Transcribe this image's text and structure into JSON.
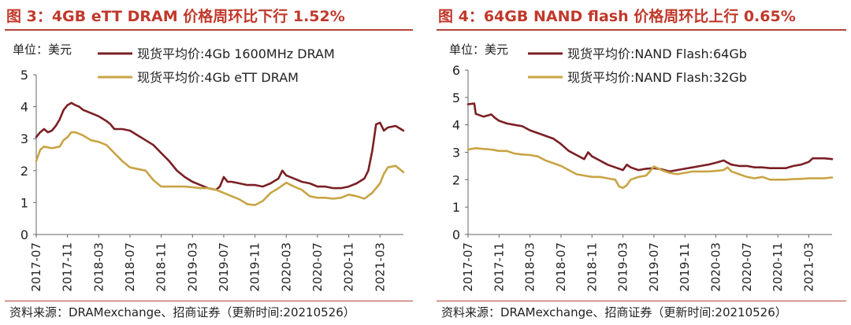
{
  "chart_data": [
    {
      "type": "line",
      "title": "图 3：4GB eTT DRAM 价格周环比下行 1.52%",
      "unit_label": "单位：美元",
      "source": "资料来源：DRAMexchange、招商证券（更新时间:20210526）",
      "ylim": [
        0,
        5
      ],
      "yticks": [
        "0",
        "1",
        "2",
        "3",
        "4",
        "5"
      ],
      "xlim": [
        0,
        47
      ],
      "xticks": [
        "2017-07",
        "2017-11",
        "2018-03",
        "2018-07",
        "2018-11",
        "2019-03",
        "2019-07",
        "2019-11",
        "2020-03",
        "2020-07",
        "2020-11",
        "2021-03"
      ],
      "xtick_pos": [
        0,
        4,
        8,
        12,
        16,
        20,
        24,
        28,
        32,
        36,
        40,
        44
      ],
      "legend_position": "top",
      "series": [
        {
          "name": "现货平均价:4Gb 1600MHz DRAM",
          "color": "#7b1f24",
          "points": [
            [
              0,
              3.05
            ],
            [
              0.5,
              3.2
            ],
            [
              1,
              3.3
            ],
            [
              1.5,
              3.2
            ],
            [
              2,
              3.25
            ],
            [
              2.5,
              3.4
            ],
            [
              3,
              3.6
            ],
            [
              3.5,
              3.9
            ],
            [
              4,
              4.05
            ],
            [
              4.5,
              4.12
            ],
            [
              5,
              4.05
            ],
            [
              5.5,
              4.0
            ],
            [
              6,
              3.9
            ],
            [
              7,
              3.8
            ],
            [
              8,
              3.7
            ],
            [
              9,
              3.55
            ],
            [
              9.5,
              3.45
            ],
            [
              10,
              3.3
            ],
            [
              11,
              3.3
            ],
            [
              12,
              3.25
            ],
            [
              13,
              3.1
            ],
            [
              14,
              2.95
            ],
            [
              15,
              2.8
            ],
            [
              16,
              2.55
            ],
            [
              17,
              2.3
            ],
            [
              18,
              2.0
            ],
            [
              19,
              1.8
            ],
            [
              20,
              1.65
            ],
            [
              21,
              1.55
            ],
            [
              22,
              1.45
            ],
            [
              23,
              1.4
            ],
            [
              23.5,
              1.5
            ],
            [
              24,
              1.8
            ],
            [
              24.5,
              1.65
            ],
            [
              25,
              1.65
            ],
            [
              26,
              1.6
            ],
            [
              27,
              1.55
            ],
            [
              28,
              1.55
            ],
            [
              29,
              1.5
            ],
            [
              30,
              1.6
            ],
            [
              31,
              1.75
            ],
            [
              31.5,
              2.0
            ],
            [
              32,
              1.85
            ],
            [
              33,
              1.75
            ],
            [
              34,
              1.65
            ],
            [
              35,
              1.6
            ],
            [
              36,
              1.5
            ],
            [
              37,
              1.5
            ],
            [
              38,
              1.45
            ],
            [
              39,
              1.45
            ],
            [
              40,
              1.5
            ],
            [
              41,
              1.6
            ],
            [
              42,
              1.75
            ],
            [
              42.5,
              2.0
            ],
            [
              43,
              2.6
            ],
            [
              43.5,
              3.45
            ],
            [
              44,
              3.5
            ],
            [
              44.5,
              3.25
            ],
            [
              45,
              3.35
            ],
            [
              46,
              3.4
            ],
            [
              47,
              3.25
            ]
          ]
        },
        {
          "name": "现货平均价:4Gb eTT DRAM",
          "color": "#c8a444",
          "points": [
            [
              0,
              2.3
            ],
            [
              0.5,
              2.65
            ],
            [
              1,
              2.75
            ],
            [
              2,
              2.7
            ],
            [
              3,
              2.75
            ],
            [
              3.5,
              2.95
            ],
            [
              4,
              3.05
            ],
            [
              4.5,
              3.2
            ],
            [
              5,
              3.2
            ],
            [
              6,
              3.1
            ],
            [
              7,
              2.95
            ],
            [
              8,
              2.9
            ],
            [
              9,
              2.8
            ],
            [
              10,
              2.55
            ],
            [
              11,
              2.3
            ],
            [
              12,
              2.1
            ],
            [
              13,
              2.05
            ],
            [
              14,
              2.0
            ],
            [
              15,
              1.7
            ],
            [
              16,
              1.5
            ],
            [
              17,
              1.5
            ],
            [
              18,
              1.5
            ],
            [
              19,
              1.5
            ],
            [
              20,
              1.48
            ],
            [
              21,
              1.45
            ],
            [
              22,
              1.45
            ],
            [
              23,
              1.4
            ],
            [
              24,
              1.3
            ],
            [
              25,
              1.2
            ],
            [
              26,
              1.1
            ],
            [
              27,
              0.95
            ],
            [
              28,
              0.92
            ],
            [
              29,
              1.05
            ],
            [
              30,
              1.3
            ],
            [
              31,
              1.45
            ],
            [
              32,
              1.62
            ],
            [
              33,
              1.5
            ],
            [
              34,
              1.4
            ],
            [
              35,
              1.2
            ],
            [
              36,
              1.15
            ],
            [
              37,
              1.15
            ],
            [
              38,
              1.12
            ],
            [
              39,
              1.15
            ],
            [
              40,
              1.25
            ],
            [
              41,
              1.2
            ],
            [
              42,
              1.12
            ],
            [
              43,
              1.3
            ],
            [
              44,
              1.6
            ],
            [
              44.5,
              1.9
            ],
            [
              45,
              2.1
            ],
            [
              46,
              2.15
            ],
            [
              47,
              1.95
            ]
          ]
        }
      ]
    },
    {
      "type": "line",
      "title": "图 4：64GB NAND flash 价格周环比上行 0.65%",
      "unit_label": "单位：美元",
      "source": "资料来源：DRAMexchange、招商证券（更新时间:20210526）",
      "ylim": [
        0,
        6
      ],
      "yticks": [
        "0",
        "1",
        "2",
        "3",
        "4",
        "5",
        "6"
      ],
      "xlim": [
        0,
        47
      ],
      "xticks": [
        "2017-07",
        "2017-11",
        "2018-03",
        "2018-07",
        "2018-11",
        "2019-03",
        "2019-07",
        "2019-11",
        "2020-03",
        "2020-07",
        "2020-11",
        "2021-03"
      ],
      "xtick_pos": [
        0,
        4,
        8,
        12,
        16,
        20,
        24,
        28,
        32,
        36,
        40,
        44
      ],
      "legend_position": "top",
      "series": [
        {
          "name": "现货平均价:NAND Flash:64Gb",
          "color": "#7b1f24",
          "points": [
            [
              0,
              4.75
            ],
            [
              0.8,
              4.78
            ],
            [
              1,
              4.4
            ],
            [
              2,
              4.3
            ],
            [
              3,
              4.38
            ],
            [
              3.5,
              4.25
            ],
            [
              4,
              4.15
            ],
            [
              5,
              4.05
            ],
            [
              6,
              4.0
            ],
            [
              7,
              3.95
            ],
            [
              8,
              3.8
            ],
            [
              9,
              3.7
            ],
            [
              10,
              3.6
            ],
            [
              11,
              3.5
            ],
            [
              12,
              3.3
            ],
            [
              13,
              3.05
            ],
            [
              14,
              2.9
            ],
            [
              15,
              2.75
            ],
            [
              15.5,
              3.0
            ],
            [
              16,
              2.85
            ],
            [
              17,
              2.7
            ],
            [
              18,
              2.55
            ],
            [
              19,
              2.45
            ],
            [
              20,
              2.35
            ],
            [
              20.5,
              2.55
            ],
            [
              21,
              2.45
            ],
            [
              22,
              2.35
            ],
            [
              23,
              2.4
            ],
            [
              24,
              2.42
            ],
            [
              25,
              2.38
            ],
            [
              26,
              2.3
            ],
            [
              27,
              2.35
            ],
            [
              28,
              2.4
            ],
            [
              29,
              2.45
            ],
            [
              30,
              2.5
            ],
            [
              31,
              2.55
            ],
            [
              32,
              2.62
            ],
            [
              33,
              2.7
            ],
            [
              33.5,
              2.62
            ],
            [
              34,
              2.55
            ],
            [
              35,
              2.5
            ],
            [
              36,
              2.5
            ],
            [
              37,
              2.45
            ],
            [
              38,
              2.45
            ],
            [
              39,
              2.42
            ],
            [
              40,
              2.42
            ],
            [
              41,
              2.42
            ],
            [
              42,
              2.5
            ],
            [
              43,
              2.55
            ],
            [
              44,
              2.65
            ],
            [
              44.5,
              2.78
            ],
            [
              46,
              2.78
            ],
            [
              47,
              2.75
            ]
          ]
        },
        {
          "name": "现货平均价:NAND Flash:32Gb",
          "color": "#c8a444",
          "points": [
            [
              0,
              3.1
            ],
            [
              1,
              3.15
            ],
            [
              2,
              3.12
            ],
            [
              3,
              3.1
            ],
            [
              4,
              3.05
            ],
            [
              5,
              3.05
            ],
            [
              6,
              2.95
            ],
            [
              7,
              2.92
            ],
            [
              8,
              2.9
            ],
            [
              9,
              2.85
            ],
            [
              10,
              2.7
            ],
            [
              11,
              2.6
            ],
            [
              12,
              2.5
            ],
            [
              13,
              2.35
            ],
            [
              14,
              2.2
            ],
            [
              15,
              2.15
            ],
            [
              16,
              2.1
            ],
            [
              17,
              2.1
            ],
            [
              18,
              2.05
            ],
            [
              19,
              2.0
            ],
            [
              19.5,
              1.75
            ],
            [
              20,
              1.7
            ],
            [
              20.5,
              1.8
            ],
            [
              21,
              2.0
            ],
            [
              22,
              2.1
            ],
            [
              23,
              2.15
            ],
            [
              24,
              2.48
            ],
            [
              25,
              2.35
            ],
            [
              26,
              2.25
            ],
            [
              27,
              2.2
            ],
            [
              28,
              2.25
            ],
            [
              29,
              2.3
            ],
            [
              30,
              2.3
            ],
            [
              31,
              2.3
            ],
            [
              32,
              2.32
            ],
            [
              33,
              2.35
            ],
            [
              33.5,
              2.45
            ],
            [
              34,
              2.3
            ],
            [
              35,
              2.2
            ],
            [
              36,
              2.1
            ],
            [
              37,
              2.05
            ],
            [
              38,
              2.1
            ],
            [
              39,
              2.0
            ],
            [
              40,
              2.0
            ],
            [
              41,
              2.0
            ],
            [
              42,
              2.02
            ],
            [
              43,
              2.03
            ],
            [
              44,
              2.05
            ],
            [
              45,
              2.05
            ],
            [
              46,
              2.05
            ],
            [
              47,
              2.08
            ]
          ]
        }
      ]
    }
  ]
}
